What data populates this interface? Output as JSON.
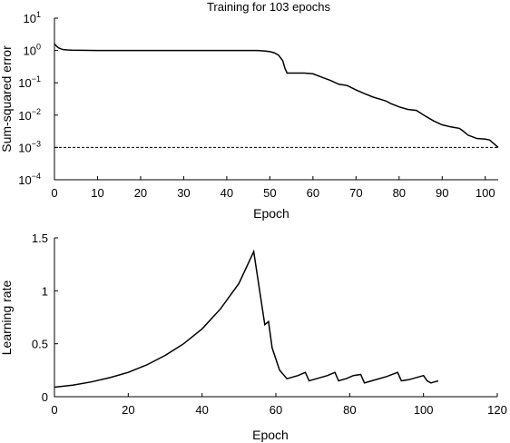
{
  "chart_data": [
    {
      "type": "line",
      "title": "Training for 103 epochs",
      "xlabel": "Epoch",
      "ylabel": "Sum-squared error",
      "xlim": [
        0,
        103
      ],
      "ylim": [
        0.0001,
        10
      ],
      "yscale": "log",
      "x_ticks": [
        "0",
        "10",
        "20",
        "30",
        "40",
        "50",
        "60",
        "70",
        "80",
        "90",
        "100"
      ],
      "y_ticks": [
        {
          "base": "10",
          "exp": "1"
        },
        {
          "base": "10",
          "exp": "0"
        },
        {
          "base": "10",
          "exp": "−1"
        },
        {
          "base": "10",
          "exp": "−2"
        },
        {
          "base": "10",
          "exp": "−3"
        },
        {
          "base": "10",
          "exp": "−4"
        }
      ],
      "grid": false,
      "series": [
        {
          "x": [
            0,
            0.5,
            1,
            1.5,
            2,
            3,
            4,
            6,
            10,
            20,
            30,
            40,
            45,
            47,
            48,
            49,
            50,
            51,
            52,
            53,
            53.5,
            54,
            56,
            58,
            60,
            62,
            64,
            66,
            68,
            70,
            72,
            74,
            76,
            77,
            78,
            80,
            82,
            84,
            86,
            88,
            90,
            92,
            94,
            95,
            96,
            98,
            100,
            101,
            102,
            103
          ],
          "y": [
            1.6,
            1.35,
            1.2,
            1.12,
            1.07,
            1.04,
            1.02,
            1.01,
            1.0,
            1.0,
            1.0,
            1.0,
            1.0,
            1.0,
            0.98,
            0.96,
            0.92,
            0.85,
            0.72,
            0.48,
            0.28,
            0.2,
            0.2,
            0.2,
            0.19,
            0.15,
            0.12,
            0.09,
            0.082,
            0.06,
            0.046,
            0.036,
            0.03,
            0.027,
            0.023,
            0.018,
            0.015,
            0.014,
            0.0095,
            0.0066,
            0.005,
            0.0043,
            0.0039,
            0.0031,
            0.0024,
            0.0019,
            0.0018,
            0.0017,
            0.0013,
            0.001
          ]
        }
      ],
      "reference_line": {
        "y": 0.001,
        "style": "dashed"
      }
    },
    {
      "type": "line",
      "title": "",
      "xlabel": "Epoch",
      "ylabel": "Learning rate",
      "xlim": [
        0,
        120
      ],
      "ylim": [
        0,
        1.5
      ],
      "x_ticks": [
        "0",
        "20",
        "40",
        "60",
        "80",
        "100",
        "120"
      ],
      "y_ticks": [
        "0",
        "0.5",
        "1",
        "1.5"
      ],
      "grid": false,
      "series": [
        {
          "x": [
            0,
            5,
            10,
            15,
            20,
            25,
            30,
            35,
            40,
            45,
            50,
            54,
            57,
            58,
            59,
            61,
            63,
            66,
            68,
            69,
            71,
            74,
            76,
            77,
            79,
            81,
            83,
            84,
            86,
            90,
            93,
            94,
            96,
            100,
            101,
            102,
            103,
            104
          ],
          "y": [
            0.09,
            0.11,
            0.14,
            0.18,
            0.23,
            0.3,
            0.39,
            0.5,
            0.64,
            0.83,
            1.07,
            1.37,
            0.68,
            0.71,
            0.46,
            0.25,
            0.17,
            0.2,
            0.23,
            0.15,
            0.17,
            0.2,
            0.23,
            0.15,
            0.17,
            0.2,
            0.21,
            0.13,
            0.15,
            0.19,
            0.23,
            0.15,
            0.16,
            0.2,
            0.15,
            0.13,
            0.14,
            0.15
          ]
        }
      ]
    }
  ]
}
